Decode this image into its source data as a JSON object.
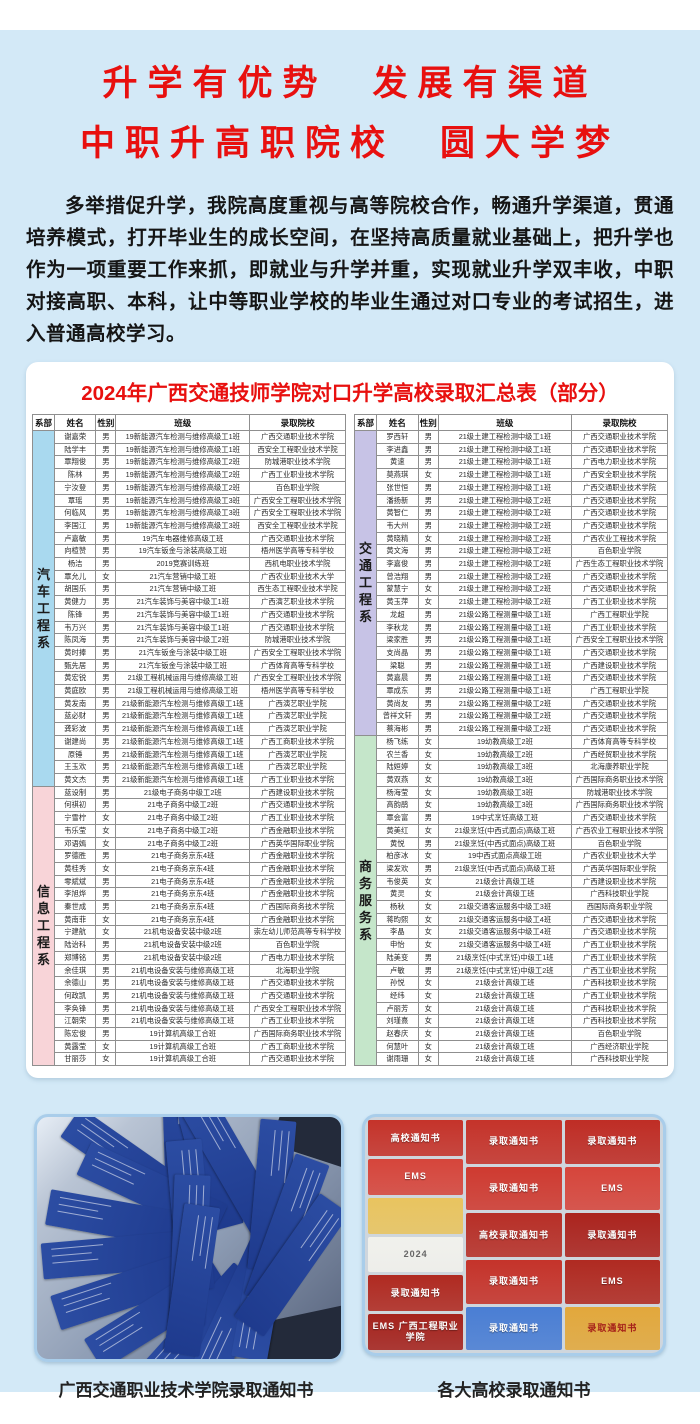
{
  "header": {
    "title_line1": "升学有优势　发展有渠道",
    "title_line2": "中职升高职院校　圆大学梦",
    "accent_red": "#e8100f",
    "bg_blue": "#d3e9f7"
  },
  "intro": {
    "text": "多举措促升学，我院高度重视与高等院校合作，畅通升学渠道，贯通培养模式，打开毕业生的成长空间，在坚持高质量就业基础上，把升学也作为一项重要工作来抓，即就业与升学并重，实现就业升学双丰收，中职对接高职、本科，让中等职业学校的毕业生通过对口专业的考试招生，进入普通高校学习。"
  },
  "table": {
    "title": "2024年广西交通技师学院对口升学高校录取汇总表（部分）",
    "headers": [
      "系部",
      "姓名",
      "性别",
      "班级",
      "录取院校"
    ],
    "left_sections": [
      {
        "dept": "汽车工程系",
        "color": "#a9d9ef",
        "rows": [
          [
            "谢嘉荣",
            "男",
            "19新能源汽车检测与维修高级工1班",
            "广西交通职业技术学院"
          ],
          [
            "陆学丰",
            "男",
            "19新能源汽车检测与维修高级工1班",
            "西安全工程职业技术学院"
          ],
          [
            "覃翔俊",
            "男",
            "19新能源汽车检测与维修高级工2班",
            "防城港职业技术学院"
          ],
          [
            "陈林",
            "男",
            "19新能源汽车检测与维修高级工2班",
            "广西工业职业技术学院"
          ],
          [
            "宁汝登",
            "男",
            "19新能源汽车检测与维修高级工2班",
            "百色职业学院"
          ],
          [
            "覃瑶",
            "男",
            "19新能源汽车检测与维修高级工3班",
            "广西安全工程职业技术学院"
          ],
          [
            "何临风",
            "男",
            "19新能源汽车检测与维修高级工3班",
            "广西安全工程职业技术学院"
          ],
          [
            "李国江",
            "男",
            "19新能源汽车检测与维修高级工3班",
            "西安全工程职业技术学院"
          ],
          [
            "卢嘉敏",
            "男",
            "19汽车电器维修高级工班",
            "广西交通职业技术学院"
          ],
          [
            "向楦赞",
            "男",
            "19汽车钣金与涂装高级工班",
            "梧州医学高等专科学校"
          ],
          [
            "杨洁",
            "男",
            "2019竞赛训练班",
            "西机电职业技术学院"
          ],
          [
            "覃允儿",
            "女",
            "21汽车营销中级工班",
            "广西农业职业技术大学"
          ],
          [
            "胡国乐",
            "男",
            "21汽车营销中级工班",
            "西生态工程职业技术学院"
          ],
          [
            "黄健力",
            "男",
            "21汽车装饰与美容中级工1班",
            "广西演艺职业技术学院"
          ],
          [
            "陈锋",
            "男",
            "21汽车装饰与美容中级工1班",
            "广西交通职业技术学院"
          ],
          [
            "韦万兴",
            "男",
            "21汽车装饰与美容中级工1班",
            "广西交通职业技术学院"
          ],
          [
            "陈凤海",
            "男",
            "21汽车装饰与美容中级工2班",
            "防城港职业技术学院"
          ],
          [
            "黄时捧",
            "男",
            "21汽车钣金与涂装中级工班",
            "广西安全工程职业技术学院"
          ],
          [
            "甄先居",
            "男",
            "21汽车钣金与涂装中级工班",
            "广西体育高等专科学校"
          ],
          [
            "黄宏锐",
            "男",
            "21级工程机械运用与维修高级工班",
            "广西安全工程职业技术学院"
          ],
          [
            "黄庭欧",
            "男",
            "21级工程机械运用与维修高级工班",
            "梧州医学高等专科学校"
          ],
          [
            "黄发南",
            "男",
            "21级新能源汽车检测与维修高级工1班",
            "广西演艺职业学院"
          ],
          [
            "蓝必财",
            "男",
            "21级新能源汽车检测与维修高级工1班",
            "广西演艺职业学院"
          ],
          [
            "龚彩波",
            "男",
            "21级新能源汽车检测与维修高级工1班",
            "广西演艺职业学院"
          ],
          [
            "谢建尚",
            "男",
            "21级新能源汽车检测与维修高级工1班",
            "广西工商职业技术学院"
          ],
          [
            "原锤",
            "男",
            "21级新能源汽车检测与维修高级工1班",
            "广西演艺职业学院"
          ],
          [
            "王玉欢",
            "男",
            "21级新能源汽车检测与维修高级工1班",
            "广西演艺职业学院"
          ],
          [
            "黄文杰",
            "男",
            "21级新能源汽车检测与维修高级工1班",
            "广西工业职业技术学院"
          ]
        ]
      },
      {
        "dept": "信息工程系",
        "color": "#f8d4d8",
        "rows": [
          [
            "蓝设制",
            "男",
            "21级电子商务中级工2班",
            "广西建设职业技术学院"
          ],
          [
            "何祺初",
            "男",
            "21电子商务中级工2班",
            "广西交通职业技术学院"
          ],
          [
            "宁雪柠",
            "女",
            "21电子商务中级工2班",
            "广西工业职业技术学院"
          ],
          [
            "韦乐莹",
            "女",
            "21电子商务中级工2班",
            "广西金融职业技术学院"
          ],
          [
            "邓语嫣",
            "女",
            "21电子商务中级工2班",
            "广西英华国际职业学院"
          ],
          [
            "罗德胜",
            "男",
            "21电子商务京东4班",
            "广西金融职业技术学院"
          ],
          [
            "黄桂秀",
            "女",
            "21电子商务京东4班",
            "广西金融职业技术学院"
          ],
          [
            "零斌斌",
            "男",
            "21电子商务京东4班",
            "广西金融职业技术学院"
          ],
          [
            "李旭烨",
            "男",
            "21电子商务京东4班",
            "广西金融职业技术学院"
          ],
          [
            "秦世成",
            "男",
            "21电子商务京东4班",
            "广西国际商务技术学院"
          ],
          [
            "黄南菲",
            "女",
            "21电子商务京东4班",
            "广西金融职业技术学院"
          ],
          [
            "宁建航",
            "女",
            "21机电设备安装中级2班",
            "崇左幼儿师范高等专科学校"
          ],
          [
            "陆诒科",
            "男",
            "21机电设备安装中级2班",
            "百色职业学院"
          ],
          [
            "郑博铭",
            "男",
            "21机电设备安装中级2班",
            "广西电力职业技术学院"
          ],
          [
            "余佳琪",
            "男",
            "21机电设备安装与维修高级工班",
            "北海职业学院"
          ],
          [
            "余德山",
            "男",
            "21机电设备安装与维修高级工班",
            "广西交通职业技术学院"
          ],
          [
            "何政凯",
            "男",
            "21机电设备安装与维修高级工班",
            "广西交通职业技术学院"
          ],
          [
            "李奂锋",
            "男",
            "21机电设备安装与维修高级工班",
            "广西安全工程职业技术学院"
          ],
          [
            "江朝荣",
            "男",
            "21机电设备安装与维修高级工班",
            "广西工业职业技术学院"
          ],
          [
            "陈宏俊",
            "男",
            "19计算机高级工合班",
            "广西国际商务职业技术学院"
          ],
          [
            "黄露莹",
            "女",
            "19计算机高级工合班",
            "广西工商职业技术学院"
          ],
          [
            "甘丽莎",
            "女",
            "19计算机高级工合班",
            "广西交通职业技术学院"
          ]
        ]
      }
    ],
    "right_sections": [
      {
        "dept": "交通工程系",
        "color": "#c7c3e6",
        "rows": [
          [
            "罗西轩",
            "男",
            "21级土建工程检测中级工1班",
            "广西交通职业技术学院"
          ],
          [
            "李进鑫",
            "男",
            "21级土建工程检测中级工1班",
            "广西交通职业技术学院"
          ],
          [
            "黄速",
            "男",
            "21级土建工程检测中级工1班",
            "广西电力职业技术学院"
          ],
          [
            "莫燕琪",
            "女",
            "21级土建工程检测中级工1班",
            "广西安全职业技术学院"
          ],
          [
            "张世恒",
            "男",
            "21级土建工程检测中级工1班",
            "广西交通职业技术学院"
          ],
          [
            "潘扬新",
            "男",
            "21级土建工程检测中级工2班",
            "广西交通职业技术学院"
          ],
          [
            "黄智仁",
            "男",
            "21级土建工程检测中级工2班",
            "广西交通职业技术学院"
          ],
          [
            "韦大州",
            "男",
            "21级土建工程检测中级工2班",
            "广西交通职业技术学院"
          ],
          [
            "黄晓精",
            "女",
            "21级土建工程检测中级工2班",
            "广西农业工程技术学院"
          ],
          [
            "黄文海",
            "男",
            "21级土建工程检测中级工2班",
            "百色职业学院"
          ],
          [
            "李嘉俊",
            "男",
            "21级土建工程检测中级工2班",
            "广西生态工程职业技术学院"
          ],
          [
            "曾浩翔",
            "男",
            "21级土建工程检测中级工2班",
            "广西交通职业技术学院"
          ],
          [
            "蒙慧宁",
            "女",
            "21级土建工程检测中级工2班",
            "广西交通职业技术学院"
          ],
          [
            "黄玉萍",
            "女",
            "21级土建工程检测中级工2班",
            "广西工业职业技术学院"
          ],
          [
            "龙超",
            "男",
            "21级公路工程测量中级工1班",
            "广西工程职业学院"
          ],
          [
            "李秋龙",
            "男",
            "21级公路工程测量中级工1班",
            "广西工业职业技术学院"
          ],
          [
            "梁家胜",
            "男",
            "21级公路工程测量中级工1班",
            "广西安全工程职业技术学院"
          ],
          [
            "支尚晶",
            "男",
            "21级公路工程测量中级工1班",
            "广西交通职业技术学院"
          ],
          [
            "梁聪",
            "男",
            "21级公路工程测量中级工1班",
            "广西建设职业技术学院"
          ],
          [
            "黄嘉晨",
            "男",
            "21级公路工程测量中级工1班",
            "广西交通职业技术学院"
          ],
          [
            "覃成东",
            "男",
            "21级公路工程测量中级工1班",
            "广西工程职业学院"
          ],
          [
            "黄尚友",
            "男",
            "21级公路工程测量中级工2班",
            "广西交通职业技术学院"
          ],
          [
            "曾祥文轩",
            "男",
            "21级公路工程测量中级工2班",
            "广西交通职业技术学院"
          ],
          [
            "蔡海彬",
            "男",
            "21级公路工程测量中级工2班",
            "广西交通职业技术学院"
          ]
        ]
      },
      {
        "dept": "商务服务系",
        "color": "#c5e6ca",
        "rows": [
          [
            "杨飞练",
            "女",
            "19幼教高级工2班",
            "广西体育高等专科学校"
          ],
          [
            "农兰香",
            "女",
            "19幼教高级工2班",
            "广西经贸职业技术学院"
          ],
          [
            "陆姮婷",
            "女",
            "19幼教高级工3班",
            "北海康养职业学院"
          ],
          [
            "黄双燕",
            "女",
            "19幼教高级工3班",
            "广西国际商务职业技术学院"
          ],
          [
            "杨海莹",
            "女",
            "19幼教高级工3班",
            "防城港职业技术学院"
          ],
          [
            "高韵鹃",
            "女",
            "19幼教高级工3班",
            "广西国际商务职业技术学院"
          ],
          [
            "覃会富",
            "男",
            "19中式烹饪高级工班",
            "广西交通职业技术学院"
          ],
          [
            "黄美红",
            "女",
            "21级烹饪(中西式面点)高级工班",
            "广西农业工程职业技术学院"
          ],
          [
            "黄悦",
            "男",
            "21级烹饪(中西式面点)高级工班",
            "百色职业学院"
          ],
          [
            "柏彦冰",
            "女",
            "19中西式面点高级工班",
            "广西农业职业技术大学"
          ],
          [
            "梁发欢",
            "男",
            "21级烹饪(中西式面点)高级工班",
            "广西英华国际职业学院"
          ],
          [
            "韦俊英",
            "女",
            "21级会计高级工班",
            "广西建设职业技术学院"
          ],
          [
            "黄灵",
            "女",
            "21级会计高级工班",
            "广西科技职业学院"
          ],
          [
            "杨秋",
            "女",
            "21级交通客运服务中级工3班",
            "西国际商务职业学院"
          ],
          [
            "蒋昀熙",
            "女",
            "21级交通客运服务中级工4班",
            "广西交通职业技术学院"
          ],
          [
            "李晶",
            "女",
            "21级交通客运服务中级工4班",
            "广西交通职业技术学院"
          ],
          [
            "申怡",
            "女",
            "21级交通客运服务中级工4班",
            "广西工业职业技术学院"
          ],
          [
            "陆美变",
            "男",
            "21级烹饪(中式烹饪)中级工1班",
            "广西工业职业技术学院"
          ],
          [
            "卢敏",
            "男",
            "21级烹饪(中式烹饪)中级工2班",
            "广西工业职业技术学院"
          ],
          [
            "孙悦",
            "女",
            "21级会计高级工班",
            "广西科技职业技术学院"
          ],
          [
            "经纬",
            "女",
            "21级会计高级工班",
            "广西工业职业技术学院"
          ],
          [
            "卢丽芳",
            "女",
            "21级会计高级工班",
            "广西科技职业技术学院"
          ],
          [
            "刘瑾熹",
            "女",
            "21级会计高级工班",
            "广西科技职业技术学院"
          ],
          [
            "赵春庆",
            "女",
            "21级会计高级工班",
            "百色职业学院"
          ],
          [
            "何慧叶",
            "女",
            "21级会计高级工班",
            "广西经济职业学院"
          ],
          [
            "谢雨珊",
            "女",
            "21级会计高级工班",
            "广西科技职业学院"
          ]
        ]
      }
    ]
  },
  "photos": {
    "left_caption": "广西交通职业技术学院录取通知书",
    "right_caption": "各大高校录取通知书",
    "left_envelope_label": "录取通知书",
    "right_collage": [
      [
        {
          "label": "高校通知书",
          "color": "#c5332a"
        },
        {
          "label": "EMS",
          "color": "#d6453b"
        },
        {
          "label": "",
          "color": "#e9c45f"
        },
        {
          "label": "2024",
          "color": "#f1f1ec"
        },
        {
          "label": "录取通知书",
          "color": "#b02a21"
        },
        {
          "label": "EMS 广西工程职业学院",
          "color": "#a5231d"
        }
      ],
      [
        {
          "label": "录取通知书",
          "color": "#c5332a"
        },
        {
          "label": "录取通知书",
          "color": "#cf3a30"
        },
        {
          "label": "高校录取通知书",
          "color": "#b72f27"
        },
        {
          "label": "录取通知书",
          "color": "#c5332a"
        },
        {
          "label": "录取通知书",
          "color": "#4a7ed4"
        }
      ],
      [
        {
          "label": "录取通知书",
          "color": "#bf2d25"
        },
        {
          "label": "EMS",
          "color": "#d6453b"
        },
        {
          "label": "录取通知书",
          "color": "#ab241e"
        },
        {
          "label": "EMS",
          "color": "#b02a21"
        },
        {
          "label": "录取通知书",
          "color": "#e2a83c"
        }
      ]
    ]
  }
}
